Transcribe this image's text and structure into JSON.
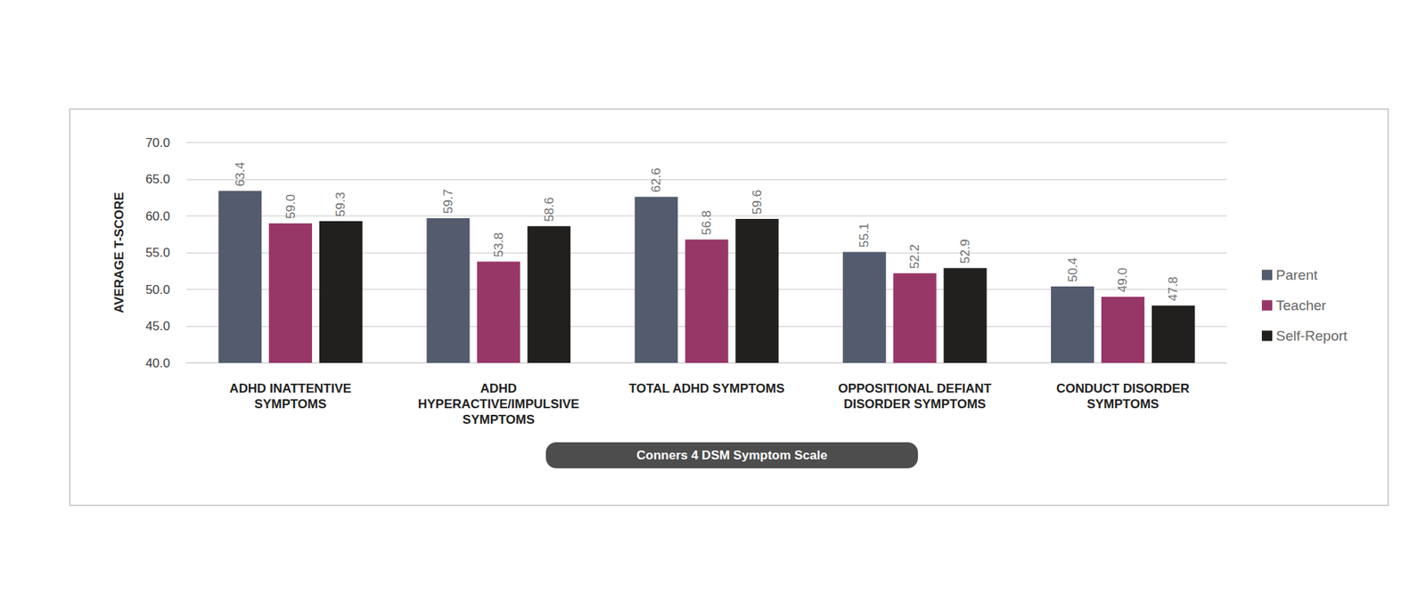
{
  "chart_data": {
    "type": "bar",
    "x_label": "Conners 4 DSM Symptom Scale",
    "y_label": "AVERAGE T-SCORE",
    "categories": [
      "ADHD INATTENTIVE\nSYMPTOMS",
      "ADHD\nHYPERACTIVE/IMPULSIVE\nSYMPTOMS",
      "TOTAL ADHD SYMPTOMS",
      "OPPOSITIONAL DEFIANT\nDISORDER SYMPTOMS",
      "CONDUCT DISORDER\nSYMPTOMS"
    ],
    "series": [
      {
        "name": "Parent",
        "color": "#545b6e",
        "values": [
          63.4,
          59.7,
          62.6,
          55.1,
          50.4
        ],
        "value_labels": [
          "63.4",
          "59.7",
          "62.6",
          "55.1",
          "50.4"
        ]
      },
      {
        "name": "Teacher",
        "color": "#973767",
        "values": [
          59.0,
          53.8,
          56.8,
          52.2,
          49.0
        ],
        "value_labels": [
          "59.0",
          "53.8",
          "56.8",
          "52.2",
          "49.0"
        ]
      },
      {
        "name": "Self-Report",
        "color": "#221f1f",
        "values": [
          59.3,
          58.6,
          59.6,
          52.9,
          47.8
        ],
        "value_labels": [
          "59.3",
          "58.6",
          "59.6",
          "52.9",
          "47.8"
        ]
      }
    ],
    "ylim": [
      40,
      70
    ],
    "yticks": [
      {
        "value": 40,
        "label": "40.0"
      },
      {
        "value": 45,
        "label": "45.0"
      },
      {
        "value": 50,
        "label": "50.0"
      },
      {
        "value": 55,
        "label": "55.0"
      },
      {
        "value": 60,
        "label": "60.0"
      },
      {
        "value": 65,
        "label": "65.0"
      },
      {
        "value": 70,
        "label": "70.0"
      }
    ],
    "grid": true,
    "legend": "right",
    "data_labels": true
  }
}
